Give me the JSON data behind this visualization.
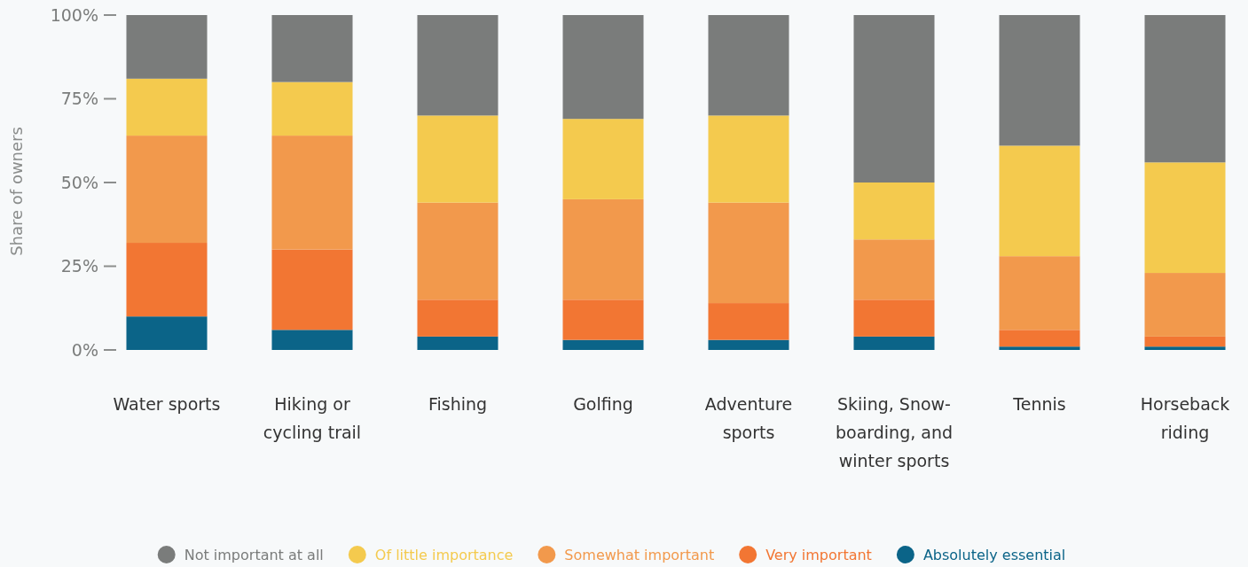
{
  "chart_data": {
    "type": "bar",
    "stacked": true,
    "ylabel": "Share of owners",
    "categories": [
      "Water sports",
      "Hiking or cycling trail",
      "Fishing",
      "Golfing",
      "Adventure sports",
      "Skiing, Snow-boarding, and winter sports",
      "Tennis",
      "Horseback riding"
    ],
    "series": [
      {
        "name": "Absolutely essential",
        "color": "#0b6488",
        "values": [
          10,
          6,
          4,
          3,
          3,
          4,
          1,
          1
        ]
      },
      {
        "name": "Very important",
        "color": "#f27633",
        "values": [
          22,
          24,
          11,
          12,
          11,
          11,
          5,
          3
        ]
      },
      {
        "name": "Somewhat important",
        "color": "#f2994c",
        "values": [
          32,
          34,
          29,
          30,
          30,
          18,
          22,
          19
        ]
      },
      {
        "name": "Of little importance",
        "color": "#f4ca4e",
        "values": [
          17,
          16,
          26,
          24,
          26,
          17,
          33,
          33
        ]
      },
      {
        "name": "Not important at all",
        "color": "#7a7c7b",
        "values": [
          19,
          20,
          30,
          31,
          30,
          50,
          39,
          44
        ]
      }
    ],
    "ylim": [
      0,
      100
    ],
    "yticks": [
      {
        "value": 0,
        "label": "0%"
      },
      {
        "value": 25,
        "label": "25%"
      },
      {
        "value": 50,
        "label": "50%"
      },
      {
        "value": 75,
        "label": "75%"
      },
      {
        "value": 100,
        "label": "100%"
      }
    ],
    "legend": "bottom"
  }
}
